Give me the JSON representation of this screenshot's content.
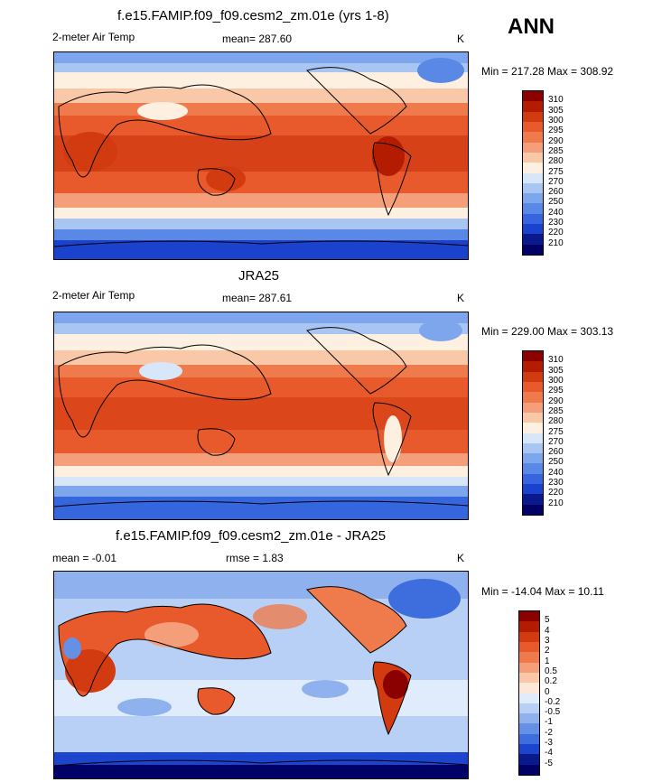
{
  "season": "ANN",
  "panels": [
    {
      "title": "f.e15.FAMIP.f09_f09.cesm2_zm.01e (yrs 1-8)",
      "left_label": "2-meter Air Temp",
      "center_label": "mean= 287.60",
      "units": "K",
      "minmax": "Min = 217.28 Max = 308.92",
      "levels": [
        "310",
        "305",
        "300",
        "295",
        "290",
        "285",
        "280",
        "275",
        "270",
        "260",
        "250",
        "240",
        "230",
        "220",
        "210"
      ],
      "colors": [
        "#8b0000",
        "#b31c00",
        "#d23a10",
        "#e85a2c",
        "#ef7a4c",
        "#f59e7a",
        "#f9c8a8",
        "#fdf0e0",
        "#d8e6fa",
        "#a9c5f2",
        "#7ea6ec",
        "#5a88e6",
        "#3666de",
        "#1a42cc",
        "#0a1a8c",
        "#000066"
      ]
    },
    {
      "title": "JRA25",
      "left_label": "2-meter Air Temp",
      "center_label": "mean= 287.61",
      "units": "K",
      "minmax": "Min = 229.00 Max = 303.13",
      "levels": [
        "310",
        "305",
        "300",
        "295",
        "290",
        "285",
        "280",
        "275",
        "270",
        "260",
        "250",
        "240",
        "230",
        "220",
        "210"
      ],
      "colors": [
        "#8b0000",
        "#b31c00",
        "#d23a10",
        "#e85a2c",
        "#ef7a4c",
        "#f59e7a",
        "#f9c8a8",
        "#fdf0e0",
        "#d8e6fa",
        "#a9c5f2",
        "#7ea6ec",
        "#5a88e6",
        "#3666de",
        "#1a42cc",
        "#0a1a8c",
        "#000066"
      ]
    },
    {
      "title": "f.e15.FAMIP.f09_f09.cesm2_zm.01e - JRA25",
      "left_label": "mean =  -0.01",
      "center_label": "rmse =   1.83",
      "units": "K",
      "minmax": "Min = -14.04 Max =  10.11",
      "levels": [
        "5",
        "4",
        "3",
        "2",
        "1",
        "0.5",
        "0.2",
        "0",
        "-0.2",
        "-0.5",
        "-1",
        "-2",
        "-3",
        "-4",
        "-5"
      ],
      "colors": [
        "#8b0000",
        "#b31c00",
        "#d23a10",
        "#e85a2c",
        "#ef7a4c",
        "#f59e7a",
        "#f9c8a8",
        "#fde8d8",
        "#e0ecfb",
        "#b8d0f5",
        "#8fb2ee",
        "#6690e6",
        "#3e6ede",
        "#1c44cc",
        "#0a1a8c",
        "#000066"
      ]
    }
  ]
}
